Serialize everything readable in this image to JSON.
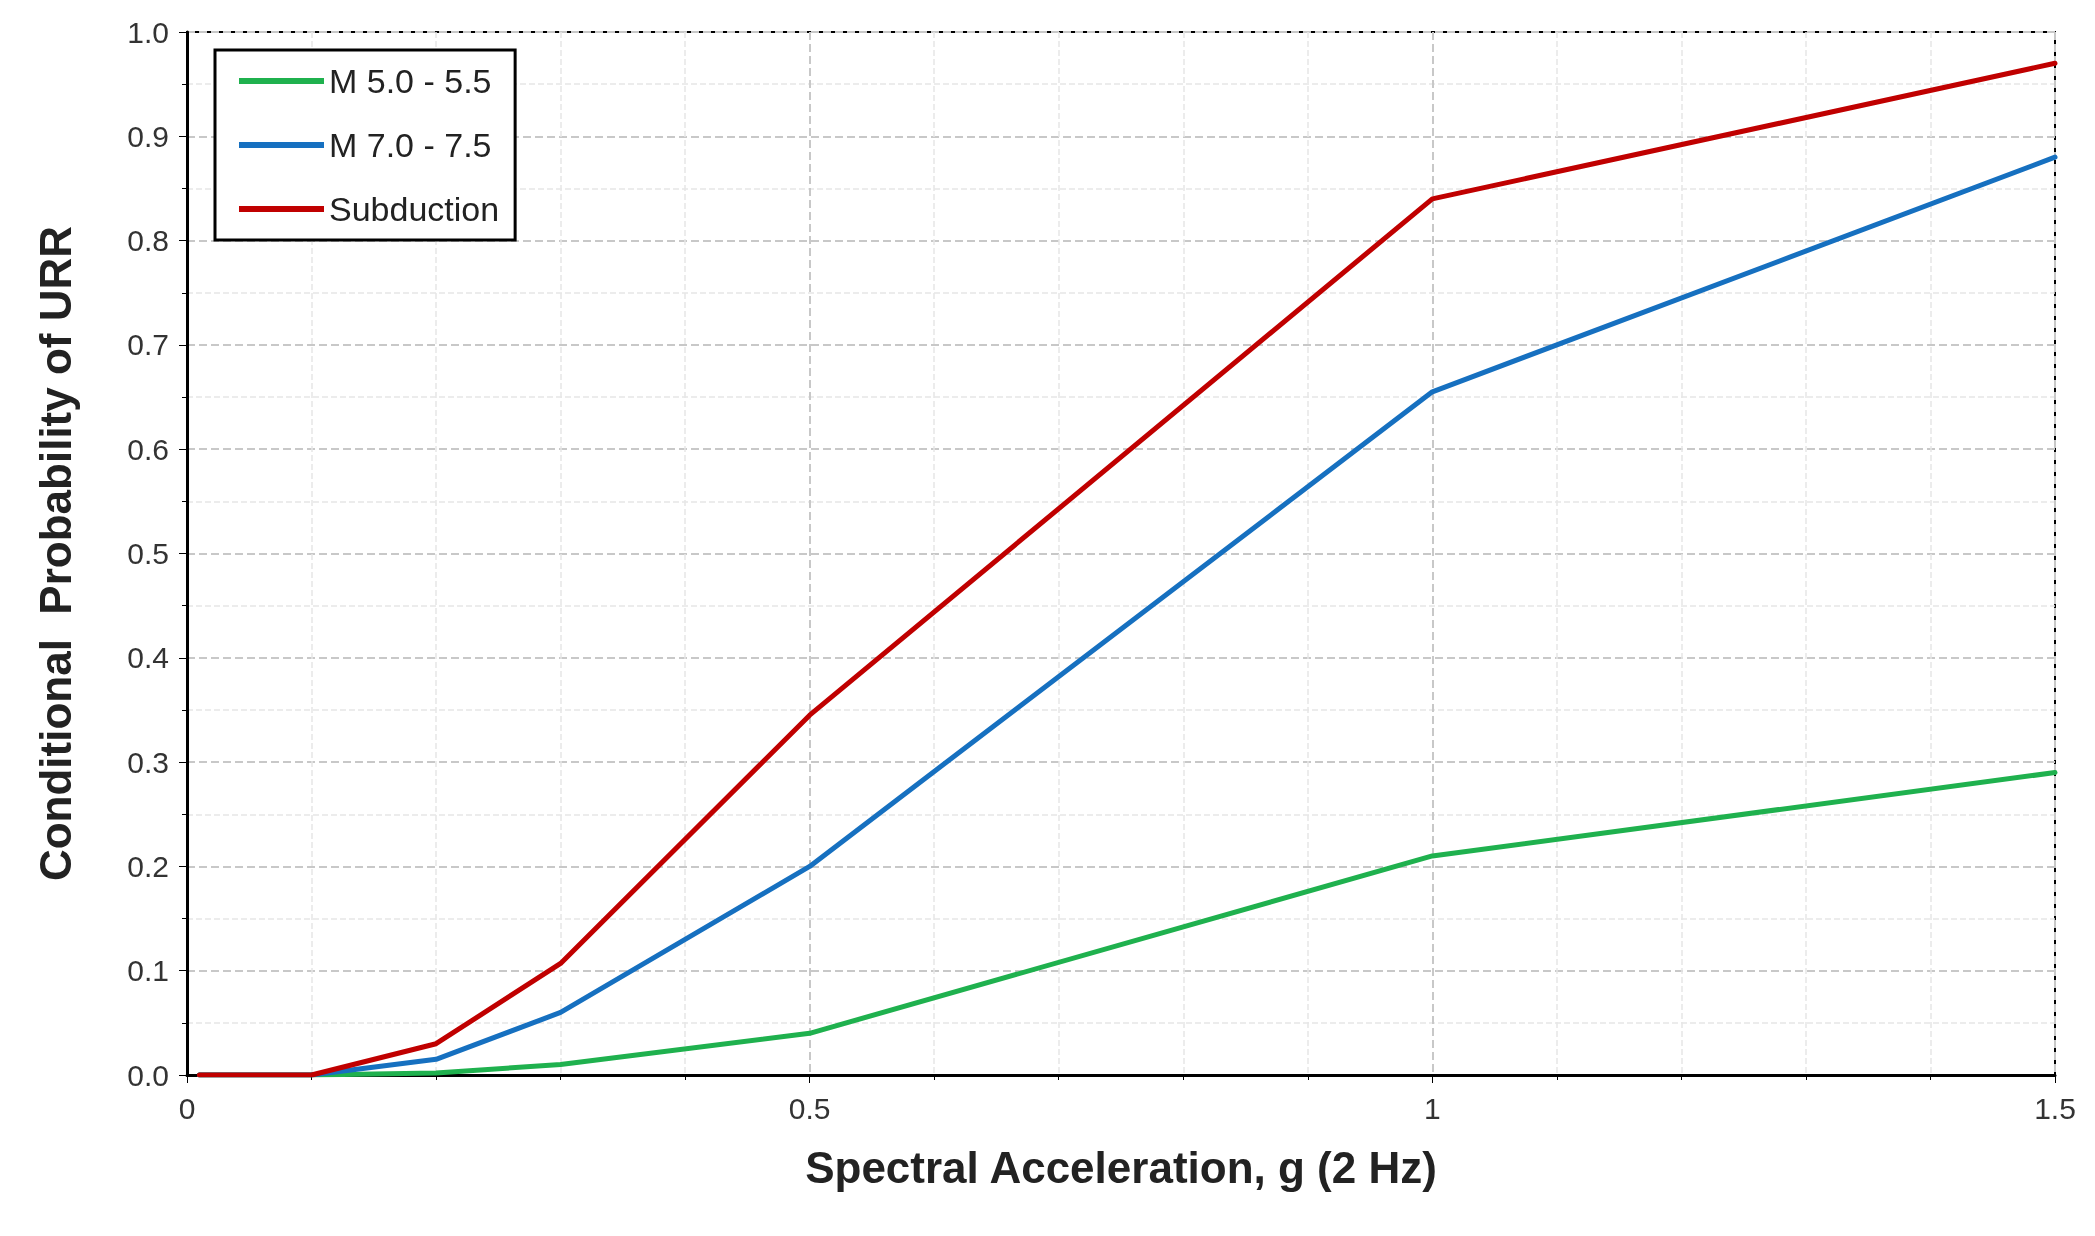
{
  "chart_data": {
    "type": "line",
    "xlabel": "Spectral Acceleration, g (2 Hz)",
    "ylabel": "Conditional  Probability of URR",
    "xlim": [
      0,
      1.5
    ],
    "xticks": [
      0,
      0.5,
      1,
      1.5
    ],
    "ylim": [
      0,
      1
    ],
    "yticks": [
      {
        "value": 0,
        "label": "0.0"
      },
      {
        "value": 0.1,
        "label": "0.1"
      },
      {
        "value": 0.2,
        "label": "0.2"
      },
      {
        "value": 0.3,
        "label": "0.3"
      },
      {
        "value": 0.4,
        "label": "0.4"
      },
      {
        "value": 0.5,
        "label": "0.5"
      },
      {
        "value": 0.6,
        "label": "0.6"
      },
      {
        "value": 0.7,
        "label": "0.7"
      },
      {
        "value": 0.8,
        "label": "0.8"
      },
      {
        "value": 0.9,
        "label": "0.9"
      },
      {
        "value": 1,
        "label": "1.0"
      }
    ],
    "grid": true,
    "legend": "top left",
    "marker": "none",
    "line_style": "solid",
    "x": [
      0.01,
      0.1,
      0.2,
      0.3,
      0.5,
      1,
      1.5
    ],
    "series": [
      {
        "name": "M 5.0 - 5.5",
        "color": "#1fb14e",
        "values": [
          0,
          0,
          0.002,
          0.01,
          0.04,
          0.21,
          0.29
        ]
      },
      {
        "name": "M 7.0 - 7.5",
        "color": "#1670c0",
        "values": [
          0,
          0,
          0.015,
          0.06,
          0.2,
          0.655,
          0.88
        ]
      },
      {
        "name": "Subduction",
        "color": "#c00000",
        "values": [
          0,
          0,
          0.03,
          0.107,
          0.345,
          0.84,
          0.97
        ]
      }
    ]
  }
}
